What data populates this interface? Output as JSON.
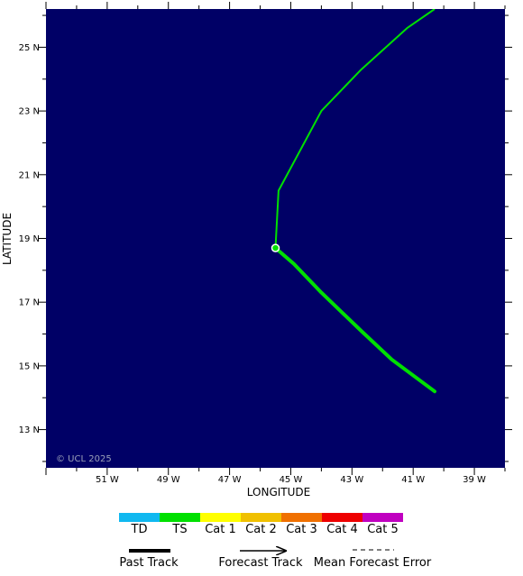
{
  "map": {
    "background_color": "#000066",
    "copyright": "© UCL 2025",
    "x_axis_title": "LONGITUDE",
    "y_axis_title": "LATITUDE",
    "lon_range": [
      -53.0,
      -38.0
    ],
    "lat_range": [
      11.8,
      26.2
    ],
    "lon_ticks": [
      {
        "value": -51,
        "label": "51 W"
      },
      {
        "value": -49,
        "label": "49 W"
      },
      {
        "value": -47,
        "label": "47 W"
      },
      {
        "value": -45,
        "label": "45 W"
      },
      {
        "value": -43,
        "label": "43 W"
      },
      {
        "value": -41,
        "label": "41 W"
      },
      {
        "value": -39,
        "label": "39 W"
      }
    ],
    "lat_ticks": [
      {
        "value": 13,
        "label": "13 N"
      },
      {
        "value": 15,
        "label": "15 N"
      },
      {
        "value": 17,
        "label": "17 N"
      },
      {
        "value": 19,
        "label": "19 N"
      },
      {
        "value": 21,
        "label": "21 N"
      },
      {
        "value": 23,
        "label": "23 N"
      },
      {
        "value": 25,
        "label": "25 N"
      }
    ],
    "past_track": {
      "category": "TS",
      "points": [
        [
          -40.3,
          14.2
        ],
        [
          -41.7,
          15.2
        ],
        [
          -42.7,
          16.1
        ],
        [
          -44.0,
          17.3
        ],
        [
          -44.9,
          18.2
        ],
        [
          -45.5,
          18.7
        ]
      ]
    },
    "forecast_track": {
      "category": "TS",
      "points": [
        [
          -45.5,
          18.7
        ],
        [
          -45.4,
          20.5
        ],
        [
          -44.0,
          23.0
        ],
        [
          -42.7,
          24.3
        ],
        [
          -41.2,
          25.6
        ],
        [
          -40.3,
          26.2
        ]
      ]
    },
    "current_position": [
      -45.5,
      18.7
    ]
  },
  "legend": {
    "categories": [
      {
        "label": "TD",
        "color": "#10b8f0"
      },
      {
        "label": "TS",
        "color": "#00e000"
      },
      {
        "label": "Cat 1",
        "color": "#ffff00"
      },
      {
        "label": "Cat 2",
        "color": "#f0c000"
      },
      {
        "label": "Cat 3",
        "color": "#f07000"
      },
      {
        "label": "Cat 4",
        "color": "#ee0000"
      },
      {
        "label": "Cat 5",
        "color": "#c000c0"
      }
    ],
    "past_track_label": "Past Track",
    "forecast_track_label": "Forecast Track",
    "error_label": "Mean Forecast Error"
  }
}
